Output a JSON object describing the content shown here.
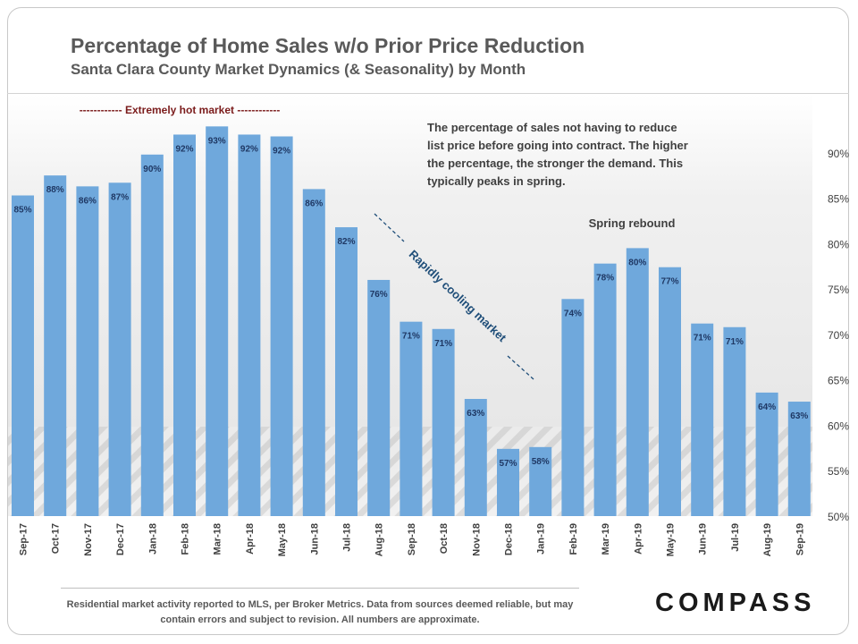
{
  "colors": {
    "bar": "#6fa8dc",
    "bar_label": "#1f3864",
    "hot_label": "#7b1c1c",
    "cooling_label": "#1f4e79",
    "axis_text": "#404040"
  },
  "brand": "COMPASS",
  "footer_note": "Residential market activity reported to MLS, per Broker Metrics. Data from sources deemed reliable, but may contain errors and subject to revision. All numbers are approximate.",
  "chart_data": {
    "type": "bar",
    "title": "Percentage of Home Sales w/o Prior Price Reduction",
    "subtitle": "Santa Clara County Market Dynamics (& Seasonality) by Month",
    "xlabel": "",
    "ylabel": "",
    "ylim": [
      50,
      95
    ],
    "y_axis_side": "right",
    "y_ticks": [
      "50%",
      "55%",
      "60%",
      "65%",
      "70%",
      "75%",
      "80%",
      "85%",
      "90%"
    ],
    "y_tick_values": [
      50,
      55,
      60,
      65,
      70,
      75,
      80,
      85,
      90
    ],
    "grid": false,
    "categories": [
      "Sep-17",
      "Oct-17",
      "Nov-17",
      "Dec-17",
      "Jan-18",
      "Feb-18",
      "Mar-18",
      "Apr-18",
      "May-18",
      "Jun-18",
      "Jul-18",
      "Aug-18",
      "Sep-18",
      "Oct-18",
      "Nov-18",
      "Dec-18",
      "Jan-19",
      "Feb-19",
      "Mar-19",
      "Apr-19",
      "May-19",
      "Jun-19",
      "Jul-19",
      "Aug-19",
      "Sep-19"
    ],
    "values": [
      85.3,
      87.5,
      86.3,
      86.7,
      89.8,
      92.0,
      92.9,
      92.0,
      91.8,
      86.0,
      81.8,
      76.0,
      71.4,
      70.6,
      62.9,
      57.4,
      57.6,
      73.9,
      77.8,
      79.5,
      77.4,
      71.2,
      70.8,
      63.6,
      62.6
    ],
    "data_labels": [
      "85%",
      "88%",
      "86%",
      "87%",
      "90%",
      "92%",
      "93%",
      "92%",
      "92%",
      "86%",
      "82%",
      "76%",
      "71%",
      "71%",
      "63%",
      "57%",
      "58%",
      "74%",
      "78%",
      "80%",
      "77%",
      "71%",
      "71%",
      "64%",
      "63%"
    ],
    "annotations": {
      "hot_market": "------------  Extremely hot market  ------------",
      "cooling": "Rapidly cooling market",
      "spring_rebound": "Spring rebound",
      "description": "The percentage of sales not having to reduce list price before going into contract. The higher the percentage, the stronger the demand. This typically peaks in spring."
    }
  }
}
